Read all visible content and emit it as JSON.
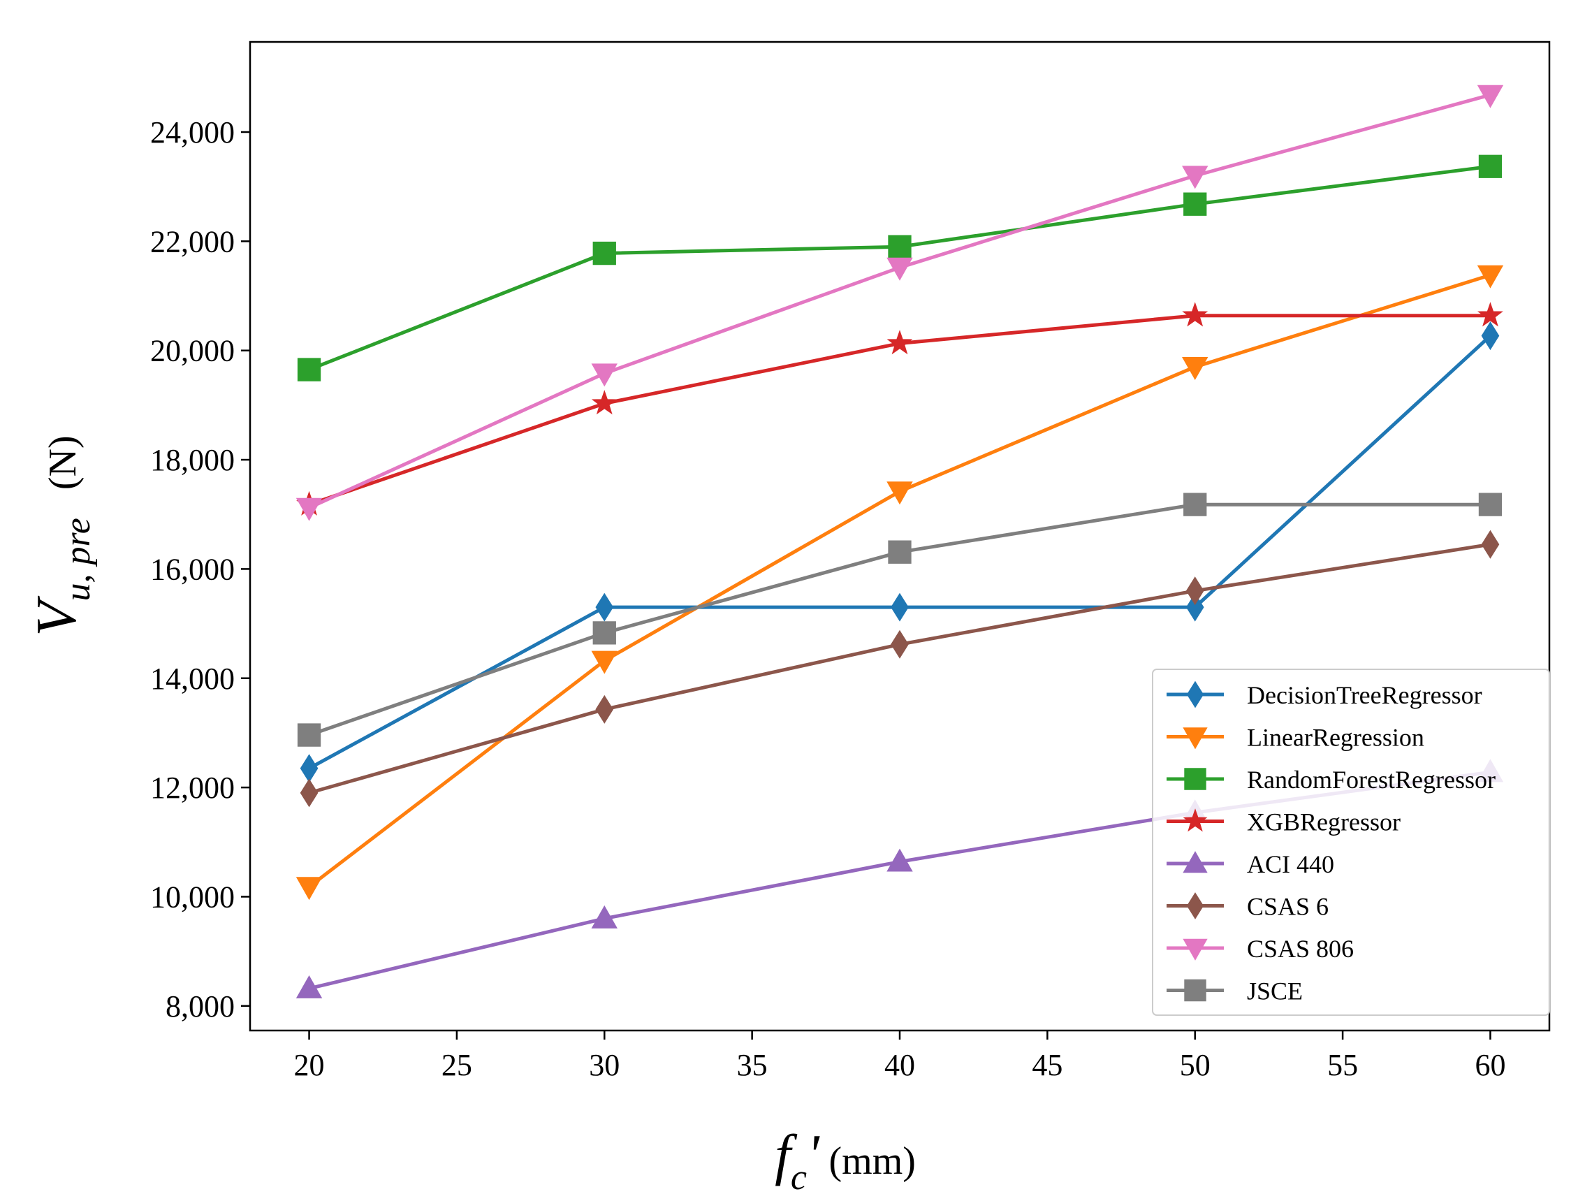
{
  "chart_data": {
    "type": "line",
    "title": "",
    "xlabel": {
      "var": "f",
      "sub": "c",
      "prime": "'",
      "unit": "(mm)"
    },
    "ylabel": {
      "var": "V",
      "sub": "u, pre",
      "unit": "(N)"
    },
    "x": [
      20,
      30,
      40,
      50,
      60
    ],
    "xlim": [
      18,
      62
    ],
    "ylim": [
      7550,
      25650
    ],
    "xticks": [
      20,
      25,
      30,
      35,
      40,
      45,
      50,
      55,
      60
    ],
    "yticks": [
      8000,
      10000,
      12000,
      14000,
      16000,
      18000,
      20000,
      22000,
      24000
    ],
    "ytick_labels": [
      "8,000",
      "10,000",
      "12,000",
      "14,000",
      "16,000",
      "18,000",
      "20,000",
      "22,000",
      "24,000"
    ],
    "grid": false,
    "legend_position": "lower-right",
    "series": [
      {
        "name": "DecisionTreeRegressor",
        "color": "#1f77b4",
        "marker": "diamond",
        "values": [
          12350,
          15300,
          15300,
          15300,
          20270
        ]
      },
      {
        "name": "LinearRegression",
        "color": "#ff7f0e",
        "marker": "triangle-down",
        "values": [
          10180,
          14320,
          17420,
          19700,
          21380
        ]
      },
      {
        "name": "RandomForestRegressor",
        "color": "#2ca02c",
        "marker": "square",
        "values": [
          19650,
          21780,
          21900,
          22680,
          23370
        ]
      },
      {
        "name": "XGBRegressor",
        "color": "#d62728",
        "marker": "star",
        "values": [
          17180,
          19030,
          20130,
          20640,
          20640
        ]
      },
      {
        "name": "ACI 440",
        "color": "#9467bd",
        "marker": "triangle-up",
        "values": [
          8320,
          9600,
          10640,
          11540,
          12280
        ]
      },
      {
        "name": "CSAS 6",
        "color": "#8c564b",
        "marker": "diamond",
        "values": [
          11900,
          13430,
          14620,
          15600,
          16450
        ]
      },
      {
        "name": "CSAS 806",
        "color": "#e377c2",
        "marker": "triangle-down",
        "values": [
          17120,
          19580,
          21520,
          23200,
          24680
        ]
      },
      {
        "name": "JSCE",
        "color": "#7f7f7f",
        "marker": "square",
        "values": [
          12960,
          14830,
          16310,
          17180,
          17180
        ]
      }
    ]
  }
}
